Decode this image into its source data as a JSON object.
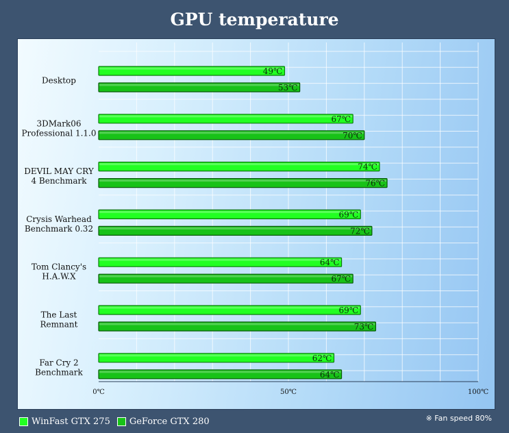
{
  "colors": {
    "series1": "#22ff22",
    "series1_border": "#0a7a0a",
    "series2": "#18c218",
    "series2_border": "#075a07",
    "background": "#3d5470"
  },
  "note": "※ Fan speed 80%",
  "chart_data": {
    "type": "bar",
    "orientation": "horizontal",
    "title": "GPU temperature",
    "categories": [
      [
        "Desktop"
      ],
      [
        "3DMark06",
        "Professional 1.1.0"
      ],
      [
        "DEVIL MAY CRY",
        "4 Benchmark"
      ],
      [
        "Crysis Warhead",
        "Benchmark 0.32"
      ],
      [
        "Tom Clancy's",
        "H.A.W.X"
      ],
      [
        "The Last",
        "Remnant"
      ],
      [
        "Far Cry 2",
        "Benchmark"
      ]
    ],
    "series": [
      {
        "name": "WinFast GTX 275",
        "values": [
          49,
          67,
          74,
          69,
          64,
          69,
          62
        ]
      },
      {
        "name": "GeForce GTX 280",
        "values": [
          53,
          70,
          76,
          72,
          67,
          73,
          64
        ]
      }
    ],
    "value_suffix": "℃",
    "xlim": [
      0,
      100
    ],
    "xticks": [
      "0℃",
      "50℃",
      "100℃"
    ],
    "xtick_values": [
      0,
      50,
      100
    ],
    "grid": true,
    "legend_position": "bottom-left"
  }
}
